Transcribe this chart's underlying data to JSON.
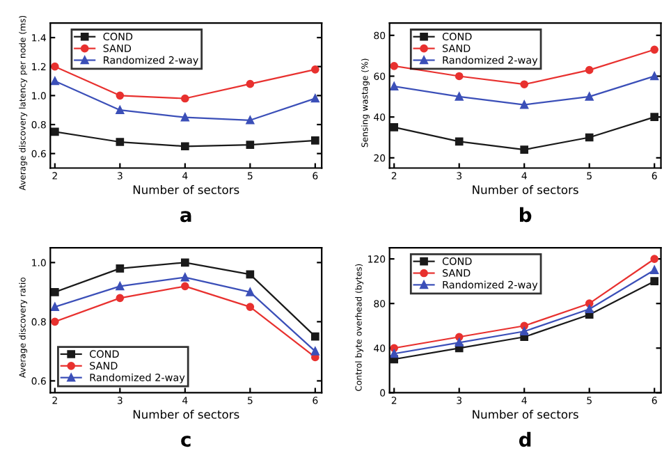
{
  "chart_data": [
    {
      "type": "line",
      "xlabel": "Number of sectors",
      "ylabel": "Average discovery latency per node (ms)",
      "annotations": [
        "a"
      ],
      "x": [
        2,
        3,
        4,
        5,
        6
      ],
      "xlim": [
        1.93,
        6.1
      ],
      "xticks": [
        2,
        3,
        4,
        5,
        6
      ],
      "ylim": [
        0.5,
        1.5
      ],
      "yticks": [
        0.6,
        0.8,
        {
          "value": 1.0,
          "label": "1.0"
        },
        1.2,
        1.4
      ],
      "legend": "top left",
      "grid": false,
      "series": [
        {
          "name": "COND",
          "color": "#1a1a1a",
          "marker": "square",
          "values": [
            0.75,
            0.68,
            0.65,
            0.66,
            0.69
          ]
        },
        {
          "name": "SAND",
          "color": "#e8312f",
          "marker": "circle",
          "values": [
            1.2,
            1.0,
            0.98,
            1.08,
            1.18
          ]
        },
        {
          "name": "Randomized 2-way",
          "color": "#3b4fb8",
          "marker": "triangle",
          "values": [
            1.1,
            0.9,
            0.85,
            0.83,
            0.98
          ]
        }
      ]
    },
    {
      "type": "line",
      "xlabel": "Number of sectors",
      "ylabel": "Sensing wastage (%)",
      "annotations": [
        "b"
      ],
      "x": [
        2,
        3,
        4,
        5,
        6
      ],
      "xlim": [
        1.93,
        6.1
      ],
      "xticks": [
        2,
        3,
        4,
        5,
        6
      ],
      "ylim": [
        15,
        86
      ],
      "yticks": [
        20,
        40,
        60,
        80
      ],
      "legend": "top left",
      "grid": false,
      "series": [
        {
          "name": "COND",
          "color": "#1a1a1a",
          "marker": "square",
          "values": [
            35,
            28,
            24,
            30,
            40
          ]
        },
        {
          "name": "SAND",
          "color": "#e8312f",
          "marker": "circle",
          "values": [
            65,
            60,
            56,
            63,
            73
          ]
        },
        {
          "name": "Randomized 2-way",
          "color": "#3b4fb8",
          "marker": "triangle",
          "values": [
            55,
            50,
            46,
            50,
            60
          ]
        }
      ]
    },
    {
      "type": "line",
      "xlabel": "Number of sectors",
      "ylabel": "Average discovery ratio",
      "annotations": [
        "c"
      ],
      "x": [
        2,
        3,
        4,
        5,
        6
      ],
      "xlim": [
        1.93,
        6.1
      ],
      "xticks": [
        2,
        3,
        4,
        5,
        6
      ],
      "ylim": [
        0.56,
        1.05
      ],
      "yticks": [
        0.6,
        0.8,
        {
          "value": 1.0,
          "label": "1.0"
        }
      ],
      "legend": "bottom left",
      "grid": false,
      "series": [
        {
          "name": "COND",
          "color": "#1a1a1a",
          "marker": "square",
          "values": [
            0.9,
            0.98,
            1.0,
            0.96,
            0.75
          ]
        },
        {
          "name": "SAND",
          "color": "#e8312f",
          "marker": "circle",
          "values": [
            0.8,
            0.88,
            0.92,
            0.85,
            0.68
          ]
        },
        {
          "name": "Randomized 2-way",
          "color": "#3b4fb8",
          "marker": "triangle",
          "values": [
            0.85,
            0.92,
            0.95,
            0.9,
            0.7
          ]
        }
      ]
    },
    {
      "type": "line",
      "xlabel": "Number of sectors",
      "ylabel": "Control byte overhead (bytes)",
      "annotations": [
        "d"
      ],
      "x": [
        2,
        3,
        4,
        5,
        6
      ],
      "xlim": [
        1.93,
        6.1
      ],
      "xticks": [
        2,
        3,
        4,
        5,
        6
      ],
      "ylim": [
        0,
        130
      ],
      "yticks": [
        0,
        40,
        80,
        120
      ],
      "legend": "top left",
      "grid": false,
      "series": [
        {
          "name": "COND",
          "color": "#1a1a1a",
          "marker": "square",
          "values": [
            30,
            40,
            50,
            70,
            100
          ]
        },
        {
          "name": "SAND",
          "color": "#e8312f",
          "marker": "circle",
          "values": [
            40,
            50,
            60,
            80,
            120
          ]
        },
        {
          "name": "Randomized 2-way",
          "color": "#3b4fb8",
          "marker": "triangle",
          "values": [
            35,
            45,
            55,
            75,
            110
          ]
        }
      ]
    }
  ]
}
